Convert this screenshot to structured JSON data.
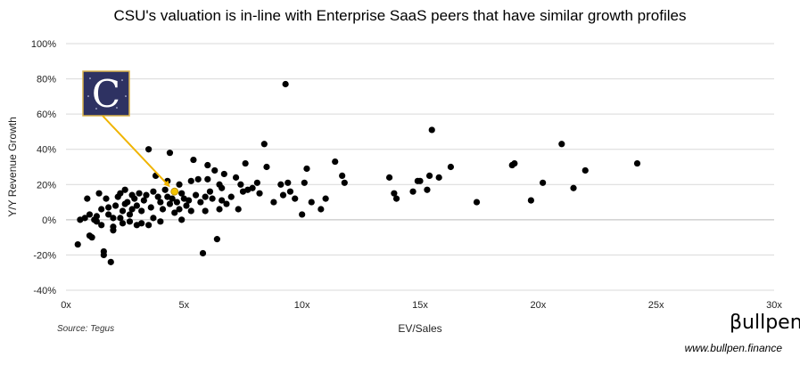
{
  "brand": {
    "name": "βullpen",
    "url": "www.bullpen.finance"
  },
  "source": "Source: Tegus",
  "logo": {
    "letter": "C",
    "label": "CSU",
    "bg_color": "#2e3262",
    "border_color": "#d9b24a"
  },
  "colors": {
    "point": "#000000",
    "highlight": "#f2c200",
    "arrow": "#f0b400",
    "grid": "#d9d9d9"
  },
  "chart_data": {
    "type": "scatter",
    "title": "CSU's valuation is in-line with Enterprise SaaS peers that have similar growth profiles",
    "xlabel": "EV/Sales",
    "ylabel": "Y/Y Revenue Growth",
    "xlim": [
      0,
      30
    ],
    "ylim": [
      -40,
      100
    ],
    "x_ticks": [
      0,
      5,
      10,
      15,
      20,
      25,
      30
    ],
    "x_tick_labels": [
      "0x",
      "5x",
      "10x",
      "15x",
      "20x",
      "25x",
      "30x"
    ],
    "y_ticks": [
      -40,
      -20,
      0,
      20,
      40,
      60,
      80,
      100
    ],
    "y_tick_labels": [
      "-40%",
      "-20%",
      "0%",
      "20%",
      "40%",
      "60%",
      "80%",
      "100%"
    ],
    "grid": "horizontal",
    "highlight": {
      "name": "CSU",
      "x": 4.6,
      "y": 16
    },
    "series": [
      {
        "name": "Enterprise SaaS peers",
        "points": [
          [
            0.5,
            -14
          ],
          [
            0.6,
            0
          ],
          [
            0.8,
            1
          ],
          [
            0.9,
            12
          ],
          [
            1.0,
            3
          ],
          [
            1.0,
            -9
          ],
          [
            1.1,
            -10
          ],
          [
            1.2,
            0
          ],
          [
            1.3,
            -1
          ],
          [
            1.4,
            15
          ],
          [
            1.5,
            -3
          ],
          [
            1.5,
            6
          ],
          [
            1.3,
            2
          ],
          [
            1.6,
            -18
          ],
          [
            1.6,
            -20
          ],
          [
            1.7,
            12
          ],
          [
            1.8,
            3
          ],
          [
            1.8,
            7
          ],
          [
            1.9,
            -24
          ],
          [
            2.0,
            1
          ],
          [
            2.0,
            -4
          ],
          [
            2.0,
            -6
          ],
          [
            2.1,
            8
          ],
          [
            2.2,
            13
          ],
          [
            2.3,
            15
          ],
          [
            2.3,
            1
          ],
          [
            2.4,
            5
          ],
          [
            2.4,
            -2
          ],
          [
            2.5,
            9
          ],
          [
            2.5,
            17
          ],
          [
            2.6,
            10
          ],
          [
            2.7,
            3
          ],
          [
            2.7,
            -1
          ],
          [
            2.8,
            14
          ],
          [
            2.8,
            6
          ],
          [
            2.9,
            12
          ],
          [
            3.0,
            8
          ],
          [
            3.0,
            -3
          ],
          [
            3.1,
            15
          ],
          [
            3.2,
            -2
          ],
          [
            3.2,
            5
          ],
          [
            3.3,
            11
          ],
          [
            3.4,
            14
          ],
          [
            3.5,
            -3
          ],
          [
            3.5,
            40
          ],
          [
            3.6,
            7
          ],
          [
            3.7,
            16
          ],
          [
            3.7,
            1
          ],
          [
            3.8,
            25
          ],
          [
            3.9,
            13
          ],
          [
            4.0,
            10
          ],
          [
            4.0,
            -1
          ],
          [
            4.1,
            6
          ],
          [
            4.2,
            17
          ],
          [
            4.3,
            22
          ],
          [
            4.3,
            13
          ],
          [
            4.4,
            38
          ],
          [
            4.4,
            9
          ],
          [
            4.5,
            12
          ],
          [
            4.6,
            4
          ],
          [
            4.7,
            10
          ],
          [
            4.8,
            20
          ],
          [
            4.8,
            6
          ],
          [
            4.9,
            0
          ],
          [
            4.9,
            15
          ],
          [
            5.0,
            12
          ],
          [
            5.1,
            8
          ],
          [
            5.2,
            11
          ],
          [
            5.3,
            22
          ],
          [
            5.3,
            5
          ],
          [
            5.4,
            34
          ],
          [
            5.5,
            14
          ],
          [
            5.6,
            23
          ],
          [
            5.7,
            10
          ],
          [
            5.8,
            -19
          ],
          [
            5.9,
            13
          ],
          [
            5.9,
            5
          ],
          [
            6.0,
            23
          ],
          [
            6.0,
            31
          ],
          [
            6.1,
            16
          ],
          [
            6.2,
            12
          ],
          [
            6.3,
            28
          ],
          [
            6.4,
            -11
          ],
          [
            6.5,
            6
          ],
          [
            6.5,
            20
          ],
          [
            6.6,
            18
          ],
          [
            6.6,
            11
          ],
          [
            6.7,
            26
          ],
          [
            6.8,
            9
          ],
          [
            7.0,
            13
          ],
          [
            7.2,
            24
          ],
          [
            7.3,
            6
          ],
          [
            7.4,
            20
          ],
          [
            7.5,
            16
          ],
          [
            7.6,
            32
          ],
          [
            7.7,
            17
          ],
          [
            7.9,
            18
          ],
          [
            8.1,
            21
          ],
          [
            8.2,
            15
          ],
          [
            8.4,
            43
          ],
          [
            8.5,
            30
          ],
          [
            8.8,
            10
          ],
          [
            9.1,
            20
          ],
          [
            9.2,
            14
          ],
          [
            9.3,
            77
          ],
          [
            9.4,
            21
          ],
          [
            9.5,
            16
          ],
          [
            9.7,
            12
          ],
          [
            10.0,
            3
          ],
          [
            10.1,
            21
          ],
          [
            10.2,
            29
          ],
          [
            10.4,
            10
          ],
          [
            10.8,
            6
          ],
          [
            11.0,
            12
          ],
          [
            11.4,
            33
          ],
          [
            11.7,
            25
          ],
          [
            11.8,
            21
          ],
          [
            13.7,
            24
          ],
          [
            13.9,
            15
          ],
          [
            14.0,
            12
          ],
          [
            14.7,
            16
          ],
          [
            14.9,
            22
          ],
          [
            15.0,
            22
          ],
          [
            15.3,
            17
          ],
          [
            15.4,
            25
          ],
          [
            15.5,
            51
          ],
          [
            15.8,
            24
          ],
          [
            16.3,
            30
          ],
          [
            17.4,
            10
          ],
          [
            18.9,
            31
          ],
          [
            19.0,
            32
          ],
          [
            19.7,
            11
          ],
          [
            20.2,
            21
          ],
          [
            21.0,
            43
          ],
          [
            21.5,
            18
          ],
          [
            22.0,
            28
          ],
          [
            24.2,
            32
          ]
        ]
      }
    ]
  }
}
